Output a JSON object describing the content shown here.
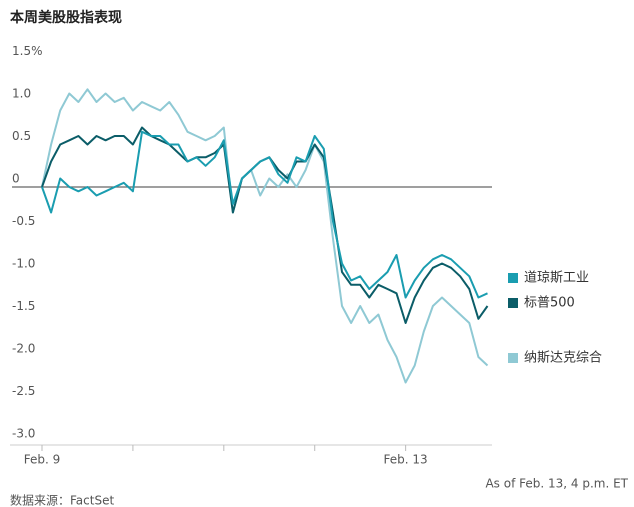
{
  "chart_data": {
    "type": "line",
    "title": "本周美股股指表现",
    "annotation": "As of Feb. 13, 4 p.m. ET",
    "source": "数据来源：FactSet",
    "x": [
      0,
      0.1,
      0.2,
      0.3,
      0.4,
      0.5,
      0.6,
      0.7,
      0.8,
      0.9,
      1,
      1.1,
      1.2,
      1.3,
      1.4,
      1.5,
      1.6,
      1.7,
      1.8,
      1.9,
      2,
      2.1,
      2.2,
      2.3,
      2.4,
      2.5,
      2.6,
      2.7,
      2.8,
      2.9,
      3,
      3.1,
      3.2,
      3.3,
      3.4,
      3.5,
      3.6,
      3.7,
      3.8,
      3.9,
      4,
      4.1,
      4.2,
      4.3,
      4.4,
      4.5,
      4.6,
      4.7,
      4.8,
      4.9
    ],
    "xlim": [
      0,
      4.95
    ],
    "xticks": [
      {
        "value": 0,
        "label": "Feb. 9"
      },
      {
        "value": 4,
        "label": "Feb. 13"
      }
    ],
    "xminorticks": [
      1,
      2,
      3
    ],
    "ylim": [
      -3.0,
      1.5
    ],
    "yticks": [
      {
        "value": 1.5,
        "label": "1.5%"
      },
      {
        "value": 1,
        "label": "1.0"
      },
      0.5,
      0,
      -0.5,
      {
        "value": -1,
        "label": "-1.0"
      },
      -1.5,
      {
        "value": -2,
        "label": "-2.0"
      },
      -2.5,
      {
        "value": -3,
        "label": "-3.0"
      }
    ],
    "zero_line": true,
    "series": [
      {
        "name": "道琼斯工业",
        "color": "#1a9db0",
        "values": [
          0,
          -0.3,
          0.1,
          0.0,
          -0.05,
          0.0,
          -0.1,
          -0.05,
          0.0,
          0.05,
          -0.05,
          0.65,
          0.6,
          0.6,
          0.5,
          0.5,
          0.3,
          0.35,
          0.25,
          0.35,
          0.55,
          -0.2,
          0.1,
          0.2,
          0.3,
          0.35,
          0.15,
          0.05,
          0.35,
          0.3,
          0.6,
          0.45,
          -0.4,
          -0.9,
          -1.1,
          -1.05,
          -1.2,
          -1.1,
          -1.0,
          -0.8,
          -1.3,
          -1.1,
          -0.95,
          -0.85,
          -0.8,
          -0.85,
          -0.95,
          -1.05,
          -1.3,
          -1.25
        ]
      },
      {
        "name": "标普500",
        "color": "#0b5d68",
        "values": [
          0,
          0.3,
          0.5,
          0.55,
          0.6,
          0.5,
          0.6,
          0.55,
          0.6,
          0.6,
          0.5,
          0.7,
          0.6,
          0.55,
          0.5,
          0.4,
          0.3,
          0.35,
          0.35,
          0.4,
          0.5,
          -0.3,
          0.1,
          0.2,
          0.3,
          0.35,
          0.2,
          0.1,
          0.3,
          0.3,
          0.5,
          0.35,
          -0.3,
          -1.0,
          -1.15,
          -1.15,
          -1.3,
          -1.15,
          -1.2,
          -1.25,
          -1.6,
          -1.3,
          -1.1,
          -0.95,
          -0.9,
          -0.95,
          -1.05,
          -1.2,
          -1.55,
          -1.4
        ]
      },
      {
        "name": "纳斯达克综合",
        "color": "#8fc9d4",
        "values": [
          0,
          0.5,
          0.9,
          1.1,
          1.0,
          1.15,
          1.0,
          1.1,
          1.0,
          1.05,
          0.9,
          1.0,
          0.95,
          0.9,
          1.0,
          0.85,
          0.65,
          0.6,
          0.55,
          0.6,
          0.7,
          -0.3,
          0.1,
          0.2,
          -0.1,
          0.1,
          0.0,
          0.15,
          0.0,
          0.2,
          0.5,
          0.3,
          -0.6,
          -1.4,
          -1.6,
          -1.4,
          -1.6,
          -1.5,
          -1.8,
          -2.0,
          -2.3,
          -2.1,
          -1.7,
          -1.4,
          -1.3,
          -1.4,
          -1.5,
          -1.6,
          -2.0,
          -2.1
        ]
      }
    ]
  }
}
